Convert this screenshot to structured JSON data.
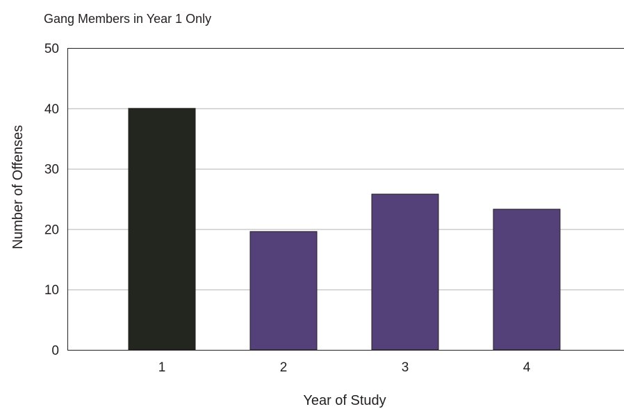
{
  "chart_data": {
    "type": "bar",
    "title": "Gang Members in Year 1 Only",
    "xlabel": "Year of Study",
    "ylabel": "Number of Offenses",
    "categories": [
      "1",
      "2",
      "3",
      "4"
    ],
    "values": [
      40,
      19.6,
      25.8,
      23.3
    ],
    "bar_colors": [
      "#23251f",
      "#54417a",
      "#54417a",
      "#54417a"
    ],
    "ylim": [
      0,
      50
    ],
    "yticks": [
      "0",
      "10",
      "20",
      "30",
      "40",
      "50"
    ],
    "grid": true,
    "legend": "none"
  },
  "colors": {
    "gridline": "#b3b3b3",
    "axis": "#231f20"
  }
}
